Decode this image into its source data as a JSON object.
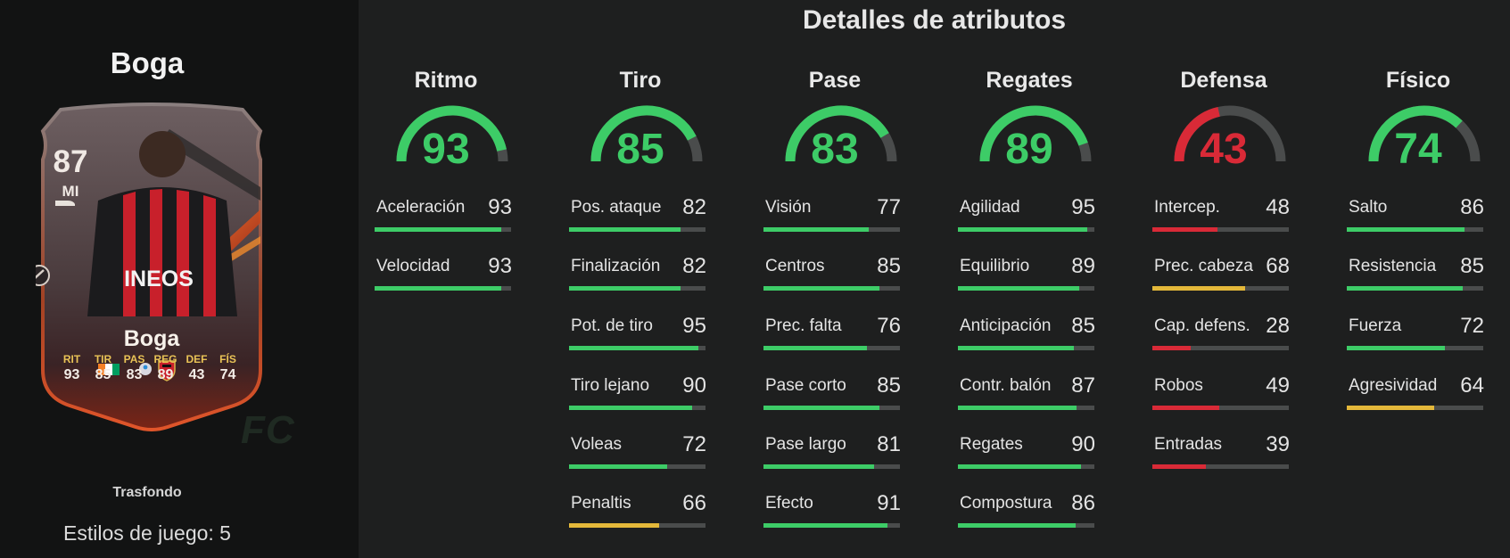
{
  "player": {
    "name": "Boga",
    "card_name": "Boga",
    "overall": "87",
    "position": "MI",
    "card_stats": [
      {
        "label": "RIT",
        "value": "93"
      },
      {
        "label": "TIR",
        "value": "85"
      },
      {
        "label": "PAS",
        "value": "83"
      },
      {
        "label": "REG",
        "value": "89"
      },
      {
        "label": "DEF",
        "value": "43"
      },
      {
        "label": "FÍS",
        "value": "74"
      }
    ],
    "background_label": "Trasfondo",
    "playstyles_label": "Estilos de juego: 5"
  },
  "header": {
    "title": "Detalles de atributos"
  },
  "watermark": "FC",
  "colors": {
    "green": "#3dcc67",
    "red": "#d92a37",
    "yellow": "#e4b83a",
    "track": "#4a4c4c",
    "card_gold": "#e9c356"
  },
  "categories": [
    {
      "name": "Ritmo",
      "value": "93",
      "color": "#3dcc67",
      "stats": [
        {
          "name": "Aceleración",
          "value": "93",
          "color": "#3dcc67"
        },
        {
          "name": "Velocidad",
          "value": "93",
          "color": "#3dcc67"
        }
      ]
    },
    {
      "name": "Tiro",
      "value": "85",
      "color": "#3dcc67",
      "stats": [
        {
          "name": "Pos. ataque",
          "value": "82",
          "color": "#3dcc67"
        },
        {
          "name": "Finalización",
          "value": "82",
          "color": "#3dcc67"
        },
        {
          "name": "Pot. de tiro",
          "value": "95",
          "color": "#3dcc67"
        },
        {
          "name": "Tiro lejano",
          "value": "90",
          "color": "#3dcc67"
        },
        {
          "name": "Voleas",
          "value": "72",
          "color": "#3dcc67"
        },
        {
          "name": "Penaltis",
          "value": "66",
          "color": "#e4b83a"
        }
      ]
    },
    {
      "name": "Pase",
      "value": "83",
      "color": "#3dcc67",
      "stats": [
        {
          "name": "Visión",
          "value": "77",
          "color": "#3dcc67"
        },
        {
          "name": "Centros",
          "value": "85",
          "color": "#3dcc67"
        },
        {
          "name": "Prec. falta",
          "value": "76",
          "color": "#3dcc67"
        },
        {
          "name": "Pase corto",
          "value": "85",
          "color": "#3dcc67"
        },
        {
          "name": "Pase largo",
          "value": "81",
          "color": "#3dcc67"
        },
        {
          "name": "Efecto",
          "value": "91",
          "color": "#3dcc67"
        }
      ]
    },
    {
      "name": "Regates",
      "value": "89",
      "color": "#3dcc67",
      "stats": [
        {
          "name": "Agilidad",
          "value": "95",
          "color": "#3dcc67"
        },
        {
          "name": "Equilibrio",
          "value": "89",
          "color": "#3dcc67"
        },
        {
          "name": "Anticipación",
          "value": "85",
          "color": "#3dcc67"
        },
        {
          "name": "Contr. balón",
          "value": "87",
          "color": "#3dcc67"
        },
        {
          "name": "Regates",
          "value": "90",
          "color": "#3dcc67"
        },
        {
          "name": "Compostura",
          "value": "86",
          "color": "#3dcc67"
        }
      ]
    },
    {
      "name": "Defensa",
      "value": "43",
      "color": "#d92a37",
      "stats": [
        {
          "name": "Intercep.",
          "value": "48",
          "color": "#d92a37"
        },
        {
          "name": "Prec. cabeza",
          "value": "68",
          "color": "#e4b83a"
        },
        {
          "name": "Cap. defens.",
          "value": "28",
          "color": "#d92a37"
        },
        {
          "name": "Robos",
          "value": "49",
          "color": "#d92a37"
        },
        {
          "name": "Entradas",
          "value": "39",
          "color": "#d92a37"
        }
      ]
    },
    {
      "name": "Físico",
      "value": "74",
      "color": "#3dcc67",
      "stats": [
        {
          "name": "Salto",
          "value": "86",
          "color": "#3dcc67"
        },
        {
          "name": "Resistencia",
          "value": "85",
          "color": "#3dcc67"
        },
        {
          "name": "Fuerza",
          "value": "72",
          "color": "#3dcc67"
        },
        {
          "name": "Agresividad",
          "value": "64",
          "color": "#e4b83a"
        }
      ]
    }
  ]
}
